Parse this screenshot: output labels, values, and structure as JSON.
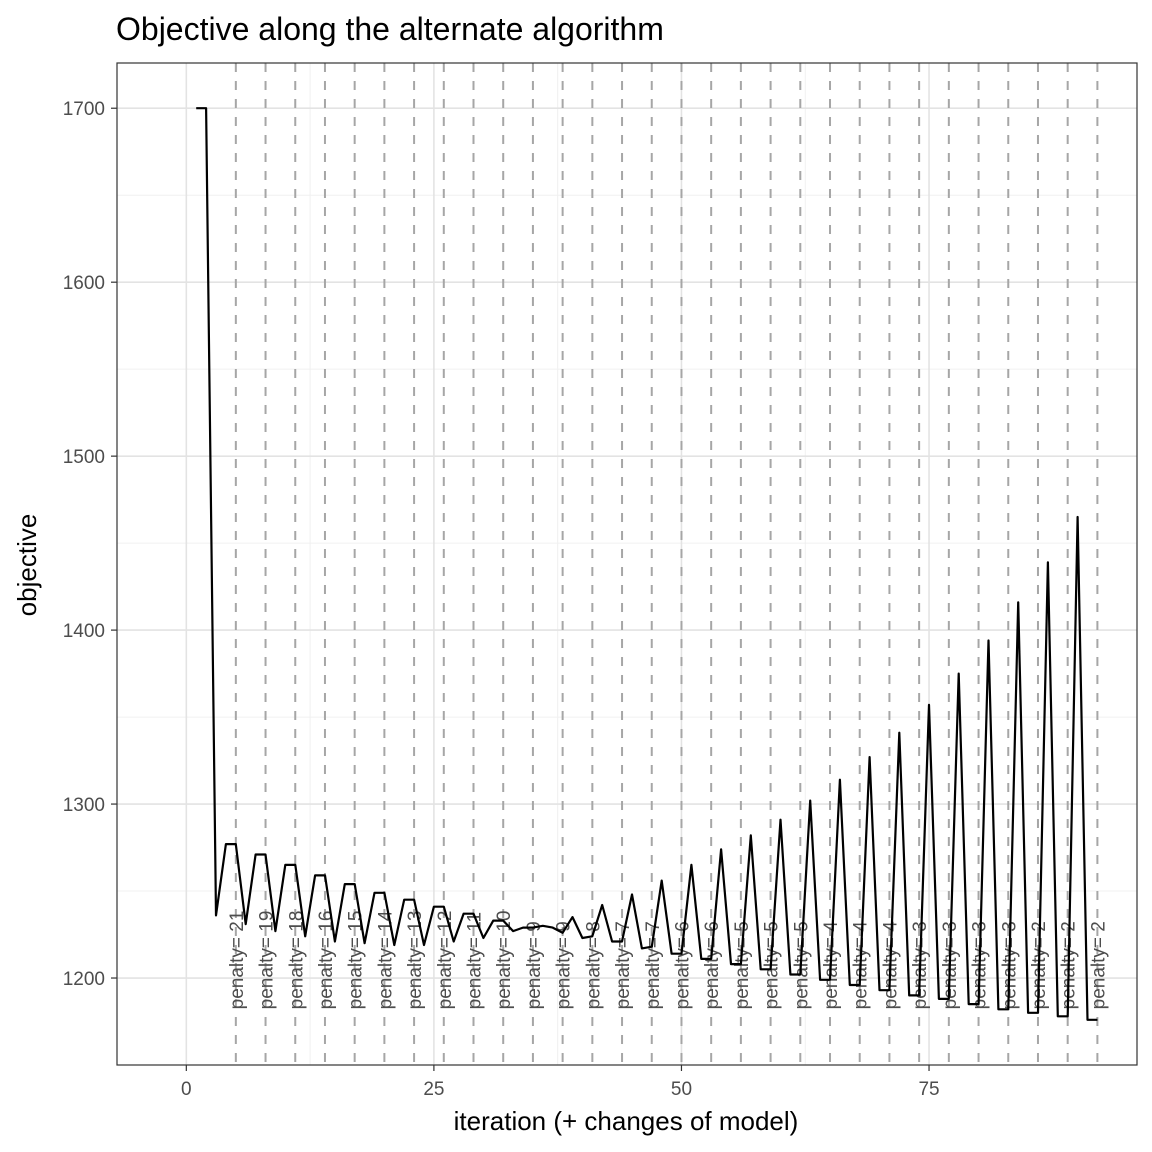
{
  "chart_data": {
    "type": "line",
    "title": "Objective along the alternate algorithm",
    "xlabel": "iteration (+ changes of model)",
    "ylabel": "objective",
    "xlim": [
      -7,
      96
    ],
    "ylim": [
      1150,
      1726
    ],
    "xticks": [
      0,
      25,
      50,
      75
    ],
    "yticks": [
      1200,
      1300,
      1400,
      1500,
      1600,
      1700
    ],
    "grid": true,
    "x": [
      1,
      2,
      3,
      4,
      5,
      6,
      7,
      8,
      9,
      10,
      11,
      12,
      13,
      14,
      15,
      16,
      17,
      18,
      19,
      20,
      21,
      22,
      23,
      24,
      25,
      26,
      27,
      28,
      29,
      30,
      31,
      32,
      33,
      34,
      35,
      36,
      37,
      38,
      39,
      40,
      41,
      42,
      43,
      44,
      45,
      46,
      47,
      48,
      49,
      50,
      51,
      52,
      53,
      54,
      55,
      56,
      57,
      58,
      59,
      60,
      61,
      62,
      63,
      64,
      65,
      66,
      67,
      68,
      69,
      70,
      71,
      72,
      73,
      74,
      75,
      76,
      77,
      78,
      79,
      80,
      81,
      82,
      83,
      84,
      85,
      86,
      87,
      88,
      89,
      90,
      91,
      92
    ],
    "y": [
      1700,
      1700,
      1236,
      1277,
      1277,
      1231,
      1271,
      1271,
      1227,
      1265,
      1265,
      1224,
      1259,
      1259,
      1221,
      1254,
      1254,
      1220,
      1249,
      1249,
      1219,
      1245,
      1245,
      1219,
      1241,
      1241,
      1221,
      1237,
      1237,
      1223,
      1233,
      1233,
      1227,
      1229,
      1229,
      1230,
      1229,
      1226,
      1235,
      1223,
      1224,
      1242,
      1221,
      1221,
      1248,
      1217,
      1218,
      1256,
      1214,
      1214,
      1265,
      1211,
      1211,
      1274,
      1208,
      1208,
      1282,
      1205,
      1205,
      1291,
      1202,
      1202,
      1302,
      1199,
      1199,
      1314,
      1196,
      1196,
      1327,
      1193,
      1193,
      1341,
      1190,
      1190,
      1357,
      1188,
      1188,
      1375,
      1185,
      1185,
      1394,
      1182,
      1182,
      1416,
      1180,
      1180,
      1439,
      1178,
      1178,
      1465,
      1176,
      1176
    ],
    "series": [
      {
        "values_key": "y",
        "color": "#000000"
      }
    ],
    "vlines": {
      "x": [
        5,
        8,
        11,
        14,
        17,
        20,
        23,
        26,
        29,
        32,
        35,
        38,
        41,
        44,
        47,
        50,
        53,
        56,
        59,
        62,
        65,
        68,
        71,
        74,
        77,
        80,
        83,
        86,
        89,
        92
      ],
      "labels": [
        "penalty= 21",
        "penalty= 19",
        "penalty= 18",
        "penalty= 16",
        "penalty= 15",
        "penalty= 14",
        "penalty= 13",
        "penalty= 12",
        "penalty= 11",
        "penalty= 10",
        "penalty= 9",
        "penalty= 9",
        "penalty= 8",
        "penalty= 7",
        "penalty= 7",
        "penalty= 6",
        "penalty= 6",
        "penalty= 5",
        "penalty= 5",
        "penalty= 5",
        "penalty= 4",
        "penalty= 4",
        "penalty= 4",
        "penalty= 3",
        "penalty= 3",
        "penalty= 3",
        "penalty= 3",
        "penalty= 2",
        "penalty= 2",
        "penalty= 2"
      ],
      "label_y": 1182,
      "color": "#a6a6a6",
      "style": "dashed"
    }
  }
}
